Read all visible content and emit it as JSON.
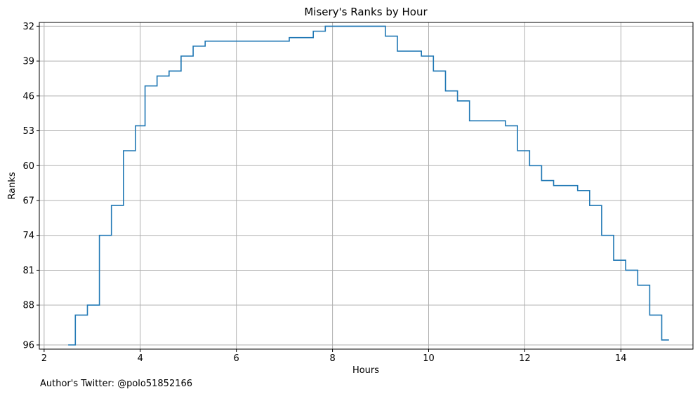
{
  "chart_data": {
    "type": "line",
    "drawstyle": "steps-post",
    "title": "Misery's Ranks by Hour",
    "xlabel": "Hours",
    "ylabel": "Ranks",
    "xlim": [
      1.9,
      15.5
    ],
    "ylim": [
      96.0,
      30.4
    ],
    "y_inverted": true,
    "xticks": [
      2,
      4,
      6,
      8,
      10,
      12,
      14
    ],
    "xtick_labels": [
      "2",
      "4",
      "6",
      "8",
      "10",
      "12",
      "14"
    ],
    "yticks": [
      32,
      39,
      46,
      53,
      60,
      67,
      74,
      81,
      88,
      96
    ],
    "ytick_labels": [
      "32",
      "39",
      "46",
      "53",
      "60",
      "67",
      "74",
      "81",
      "88",
      "96"
    ],
    "grid": true,
    "series": [
      {
        "color": "#1f77b4",
        "x": [
          2.5,
          2.65,
          2.9,
          3.15,
          3.4,
          3.65,
          3.9,
          4.1,
          4.35,
          4.6,
          4.85,
          5.1,
          5.35,
          7.1,
          7.6,
          7.85,
          8.0,
          9.1,
          9.35,
          9.85,
          10.1,
          10.35,
          10.6,
          10.85,
          11.6,
          11.85,
          12.1,
          12.35,
          12.6,
          13.1,
          13.35,
          13.6,
          13.85,
          14.1,
          14.35,
          14.6,
          14.85,
          15.0
        ],
        "y": [
          96,
          90,
          88,
          74,
          68,
          57,
          52,
          44,
          42,
          41,
          38,
          36,
          35,
          34.3,
          33,
          32,
          32,
          34,
          37,
          38,
          41,
          45,
          47,
          51,
          52,
          57,
          60,
          63,
          64,
          65,
          68,
          74,
          79,
          81,
          84,
          90,
          95,
          95
        ]
      }
    ],
    "footnote": "Author's Twitter: @polo51852166"
  }
}
